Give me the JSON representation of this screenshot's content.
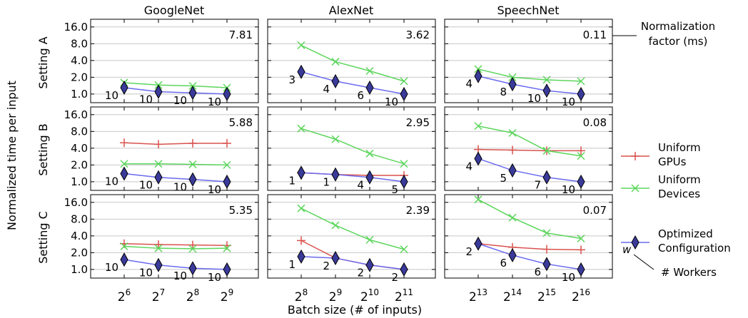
{
  "figure": {
    "ylabel": "Normalized time per input",
    "xlabel": "Batch size (# of inputs)",
    "columns": [
      "GoogleNet",
      "AlexNet",
      "SpeechNet"
    ],
    "rows": [
      "Setting A",
      "Setting B",
      "Setting C"
    ],
    "norm_label_line1": "Normalization",
    "norm_label_line2": "factor (ms)",
    "workers_label": "# Workers",
    "workers_marker_text": "w",
    "legend": [
      {
        "line1": "Uniform",
        "line2": "GPUs",
        "color": "#d9534f",
        "marker": "plus"
      },
      {
        "line1": "Uniform",
        "line2": "Devices",
        "color": "#5cd65c",
        "marker": "x"
      },
      {
        "line1": "Optimized",
        "line2": "Configuration",
        "color": "#6a6af0",
        "marker": "diamond"
      }
    ]
  },
  "chart_data": [
    {
      "type": "line",
      "column": "GoogleNet",
      "row": "Setting A",
      "y_scale": "log2",
      "ylim": [
        0.7,
        22
      ],
      "y_ticks": [
        "1.0",
        "2.0",
        "4.0",
        "8.0",
        "16.0"
      ],
      "x_ticks": [
        "2^6",
        "2^7",
        "2^8",
        "2^9"
      ],
      "x": [
        6,
        7,
        8,
        9
      ],
      "norm_factor": "7.81",
      "series": [
        {
          "name": "Uniform Devices",
          "values": [
            1.6,
            1.45,
            1.4,
            1.3
          ]
        },
        {
          "name": "Optimized Configuration",
          "values": [
            1.3,
            1.1,
            1.05,
            1.0
          ],
          "workers": [
            "10",
            "10",
            "10",
            "10"
          ]
        }
      ]
    },
    {
      "type": "line",
      "column": "AlexNet",
      "row": "Setting A",
      "y_scale": "log2",
      "ylim": [
        0.7,
        22
      ],
      "y_ticks": [
        "1.0",
        "2.0",
        "4.0",
        "8.0",
        "16.0"
      ],
      "x_ticks": [
        "2^8",
        "2^9",
        "2^10",
        "2^11"
      ],
      "x": [
        8,
        9,
        10,
        11
      ],
      "norm_factor": "3.62",
      "series": [
        {
          "name": "Uniform Devices",
          "values": [
            7.5,
            3.8,
            2.6,
            1.7
          ]
        },
        {
          "name": "Optimized Configuration",
          "values": [
            2.5,
            1.7,
            1.3,
            1.0
          ],
          "workers": [
            "3",
            "4",
            "6",
            "10"
          ]
        }
      ]
    },
    {
      "type": "line",
      "column": "SpeechNet",
      "row": "Setting A",
      "y_scale": "log2",
      "ylim": [
        0.7,
        22
      ],
      "y_ticks": [
        "1.0",
        "2.0",
        "4.0",
        "8.0",
        "16.0"
      ],
      "x_ticks": [
        "2^13",
        "2^14",
        "2^15",
        "2^16"
      ],
      "x": [
        13,
        14,
        15,
        16
      ],
      "norm_factor": "0.11",
      "series": [
        {
          "name": "Uniform Devices",
          "values": [
            2.8,
            2.0,
            1.8,
            1.7
          ]
        },
        {
          "name": "Optimized Configuration",
          "values": [
            2.1,
            1.5,
            1.15,
            1.0
          ],
          "workers": [
            "4",
            "8",
            "10",
            "10"
          ]
        }
      ]
    },
    {
      "type": "line",
      "column": "GoogleNet",
      "row": "Setting B",
      "y_scale": "log2",
      "ylim": [
        0.7,
        22
      ],
      "y_ticks": [
        "1.0",
        "2.0",
        "4.0",
        "8.0",
        "16.0"
      ],
      "x_ticks": [
        "2^6",
        "2^7",
        "2^8",
        "2^9"
      ],
      "x": [
        6,
        7,
        8,
        9
      ],
      "norm_factor": "5.88",
      "series": [
        {
          "name": "Uniform GPUs",
          "values": [
            5.0,
            4.7,
            4.9,
            4.9
          ]
        },
        {
          "name": "Uniform Devices",
          "values": [
            2.1,
            2.1,
            2.05,
            2.0
          ]
        },
        {
          "name": "Optimized Configuration",
          "values": [
            1.4,
            1.2,
            1.1,
            1.0
          ],
          "workers": [
            "10",
            "10",
            "10",
            "10"
          ]
        }
      ]
    },
    {
      "type": "line",
      "column": "AlexNet",
      "row": "Setting B",
      "y_scale": "log2",
      "ylim": [
        0.7,
        22
      ],
      "y_ticks": [
        "1.0",
        "2.0",
        "4.0",
        "8.0",
        "16.0"
      ],
      "x_ticks": [
        "2^8",
        "2^9",
        "2^10",
        "2^11"
      ],
      "x": [
        8,
        9,
        10,
        11
      ],
      "norm_factor": "2.95",
      "series": [
        {
          "name": "Uniform GPUs",
          "values": [
            1.45,
            1.35,
            1.3,
            1.3
          ]
        },
        {
          "name": "Uniform Devices",
          "values": [
            9.0,
            5.8,
            3.2,
            2.1
          ]
        },
        {
          "name": "Optimized Configuration",
          "values": [
            1.45,
            1.35,
            1.2,
            1.0
          ],
          "workers": [
            "1",
            "1",
            "4",
            "5"
          ]
        }
      ]
    },
    {
      "type": "line",
      "column": "SpeechNet",
      "row": "Setting B",
      "y_scale": "log2",
      "ylim": [
        0.7,
        22
      ],
      "y_ticks": [
        "1.0",
        "2.0",
        "4.0",
        "8.0",
        "16.0"
      ],
      "x_ticks": [
        "2^13",
        "2^14",
        "2^15",
        "2^16"
      ],
      "x": [
        13,
        14,
        15,
        16
      ],
      "norm_factor": "0.08",
      "series": [
        {
          "name": "Uniform GPUs",
          "values": [
            3.8,
            3.7,
            3.6,
            3.6
          ]
        },
        {
          "name": "Uniform Devices",
          "values": [
            10.0,
            7.5,
            3.6,
            2.9
          ]
        },
        {
          "name": "Optimized Configuration",
          "values": [
            2.6,
            1.6,
            1.2,
            1.0
          ],
          "workers": [
            "4",
            "5",
            "7",
            "10"
          ]
        }
      ]
    },
    {
      "type": "line",
      "column": "GoogleNet",
      "row": "Setting C",
      "y_scale": "log2",
      "ylim": [
        0.7,
        22
      ],
      "y_ticks": [
        "1.0",
        "2.0",
        "4.0",
        "8.0",
        "16.0"
      ],
      "x_ticks": [
        "2^6",
        "2^7",
        "2^8",
        "2^9"
      ],
      "x": [
        6,
        7,
        8,
        9
      ],
      "norm_factor": "5.35",
      "series": [
        {
          "name": "Uniform GPUs",
          "values": [
            2.9,
            2.8,
            2.75,
            2.7
          ]
        },
        {
          "name": "Uniform Devices",
          "values": [
            2.6,
            2.4,
            2.35,
            2.4
          ]
        },
        {
          "name": "Optimized Configuration",
          "values": [
            1.5,
            1.2,
            1.05,
            1.0
          ],
          "workers": [
            "10",
            "10",
            "10",
            "10"
          ]
        }
      ]
    },
    {
      "type": "line",
      "column": "AlexNet",
      "row": "Setting C",
      "y_scale": "log2",
      "ylim": [
        0.7,
        22
      ],
      "y_ticks": [
        "1.0",
        "2.0",
        "4.0",
        "8.0",
        "16.0"
      ],
      "x_ticks": [
        "2^8",
        "2^9",
        "2^10",
        "2^11"
      ],
      "x": [
        8,
        9,
        10,
        11
      ],
      "norm_factor": "2.39",
      "series": [
        {
          "name": "Uniform GPUs",
          "values": [
            3.3,
            1.6,
            1.2,
            1.0
          ]
        },
        {
          "name": "Uniform Devices",
          "values": [
            12.5,
            6.2,
            3.4,
            2.3
          ]
        },
        {
          "name": "Optimized Configuration",
          "values": [
            1.7,
            1.6,
            1.2,
            1.0
          ],
          "workers": [
            "1",
            "2",
            "2",
            "2"
          ]
        }
      ]
    },
    {
      "type": "line",
      "column": "SpeechNet",
      "row": "Setting C",
      "y_scale": "log2",
      "ylim": [
        0.7,
        22
      ],
      "y_ticks": [
        "1.0",
        "2.0",
        "4.0",
        "8.0",
        "16.0"
      ],
      "x_ticks": [
        "2^13",
        "2^14",
        "2^15",
        "2^16"
      ],
      "x": [
        13,
        14,
        15,
        16
      ],
      "norm_factor": "0.07",
      "series": [
        {
          "name": "Uniform GPUs",
          "values": [
            2.9,
            2.5,
            2.3,
            2.25
          ]
        },
        {
          "name": "Uniform Devices",
          "values": [
            18.0,
            8.5,
            4.5,
            3.6
          ]
        },
        {
          "name": "Optimized Configuration",
          "values": [
            2.9,
            1.8,
            1.25,
            1.0
          ],
          "workers": [
            "2",
            "6",
            "6",
            "10"
          ]
        }
      ]
    }
  ]
}
